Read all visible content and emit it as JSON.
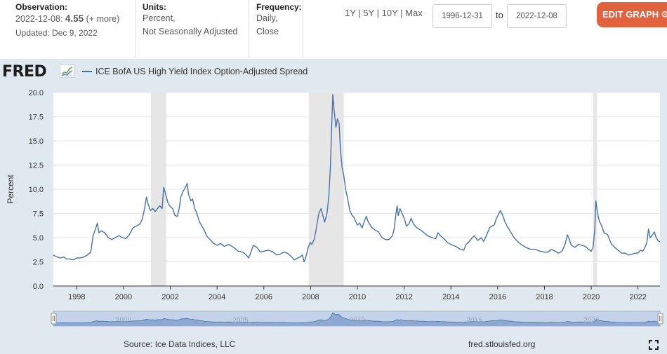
{
  "header": {
    "observation_label": "Observation:",
    "observation_date": "2022-12-08:",
    "observation_value": "4.55",
    "observation_more": "(+ more)",
    "updated": "Updated: Dec 9, 2022",
    "units_label": "Units:",
    "units_line1": "Percent,",
    "units_line2": "Not Seasonally Adjusted",
    "frequency_label": "Frequency:",
    "frequency_line1": "Daily,",
    "frequency_line2": "Close"
  },
  "ranges": [
    "1Y",
    "5Y",
    "10Y",
    "Max"
  ],
  "range_separator": "|",
  "dates": {
    "from": "1996-12-31",
    "to_label": "to",
    "to": "2022-12-08"
  },
  "edit_button": {
    "label": "EDIT GRAPH",
    "icon": "gear-icon"
  },
  "logo": {
    "text": "FRED",
    "icon": "chart-line-icon"
  },
  "footer": {
    "source": "Source: Ice Data Indices, LLC",
    "site": "fred.stlouisfed.org",
    "fullscreen_icon": "fullscreen-icon"
  },
  "colors": {
    "accent": "#e1623c",
    "line": "#4572a7",
    "recession": "#e6e6e6",
    "panel": "#e1e9f0"
  },
  "navigator_labels": [
    "2000",
    "2005",
    "2010",
    "2015",
    "2020"
  ],
  "chart_data": {
    "type": "line",
    "title": "",
    "series": [
      {
        "name": "ICE BofA US High Yield Index Option-Adjusted Spread"
      }
    ],
    "ylabel": "Percent",
    "xlabel": "",
    "ylim": [
      0,
      20
    ],
    "xlim": [
      1997.0,
      2022.94
    ],
    "y_ticks": [
      "0.0",
      "2.5",
      "5.0",
      "7.5",
      "10.0",
      "12.5",
      "15.0",
      "17.5",
      "20.0"
    ],
    "x_ticks": [
      "1998",
      "2000",
      "2002",
      "2004",
      "2006",
      "2008",
      "2010",
      "2012",
      "2014",
      "2016",
      "2018",
      "2020",
      "2022"
    ],
    "recessions": [
      [
        2001.17,
        2001.83
      ],
      [
        2007.92,
        2009.42
      ],
      [
        2020.08,
        2020.25
      ]
    ],
    "points": [
      [
        1997.0,
        3.2
      ],
      [
        1997.15,
        3.0
      ],
      [
        1997.3,
        2.9
      ],
      [
        1997.45,
        3.0
      ],
      [
        1997.55,
        2.8
      ],
      [
        1997.7,
        2.8
      ],
      [
        1997.85,
        2.7
      ],
      [
        1998.0,
        2.9
      ],
      [
        1998.15,
        2.9
      ],
      [
        1998.3,
        3.0
      ],
      [
        1998.45,
        3.2
      ],
      [
        1998.6,
        3.5
      ],
      [
        1998.7,
        5.2
      ],
      [
        1998.8,
        5.9
      ],
      [
        1998.88,
        6.5
      ],
      [
        1998.95,
        5.5
      ],
      [
        1999.05,
        5.7
      ],
      [
        1999.2,
        5.5
      ],
      [
        1999.35,
        5.0
      ],
      [
        1999.5,
        4.8
      ],
      [
        1999.65,
        5.0
      ],
      [
        1999.8,
        5.2
      ],
      [
        1999.95,
        5.0
      ],
      [
        2000.1,
        4.9
      ],
      [
        2000.25,
        5.3
      ],
      [
        2000.4,
        6.0
      ],
      [
        2000.55,
        6.2
      ],
      [
        2000.7,
        6.4
      ],
      [
        2000.8,
        6.9
      ],
      [
        2000.9,
        8.0
      ],
      [
        2000.98,
        9.2
      ],
      [
        2001.05,
        8.5
      ],
      [
        2001.15,
        7.8
      ],
      [
        2001.25,
        8.0
      ],
      [
        2001.35,
        7.7
      ],
      [
        2001.45,
        8.0
      ],
      [
        2001.55,
        8.3
      ],
      [
        2001.65,
        8.0
      ],
      [
        2001.72,
        10.2
      ],
      [
        2001.8,
        9.5
      ],
      [
        2001.9,
        8.6
      ],
      [
        2002.0,
        8.2
      ],
      [
        2002.1,
        8.0
      ],
      [
        2002.2,
        7.3
      ],
      [
        2002.3,
        7.2
      ],
      [
        2002.38,
        8.0
      ],
      [
        2002.45,
        9.2
      ],
      [
        2002.55,
        9.8
      ],
      [
        2002.65,
        10.2
      ],
      [
        2002.72,
        10.6
      ],
      [
        2002.78,
        9.5
      ],
      [
        2002.88,
        8.8
      ],
      [
        2002.95,
        9.0
      ],
      [
        2003.05,
        8.0
      ],
      [
        2003.15,
        7.4
      ],
      [
        2003.25,
        6.6
      ],
      [
        2003.35,
        6.2
      ],
      [
        2003.45,
        5.8
      ],
      [
        2003.55,
        5.2
      ],
      [
        2003.7,
        4.8
      ],
      [
        2003.85,
        4.4
      ],
      [
        2004.0,
        4.2
      ],
      [
        2004.15,
        4.4
      ],
      [
        2004.3,
        4.1
      ],
      [
        2004.5,
        4.3
      ],
      [
        2004.7,
        4.0
      ],
      [
        2004.9,
        3.6
      ],
      [
        2005.1,
        3.5
      ],
      [
        2005.25,
        3.2
      ],
      [
        2005.35,
        2.9
      ],
      [
        2005.45,
        3.5
      ],
      [
        2005.55,
        4.2
      ],
      [
        2005.7,
        4.0
      ],
      [
        2005.85,
        3.5
      ],
      [
        2006.0,
        3.6
      ],
      [
        2006.2,
        3.7
      ],
      [
        2006.4,
        3.5
      ],
      [
        2006.55,
        3.2
      ],
      [
        2006.7,
        3.3
      ],
      [
        2006.85,
        3.5
      ],
      [
        2007.0,
        3.4
      ],
      [
        2007.15,
        3.1
      ],
      [
        2007.3,
        2.7
      ],
      [
        2007.45,
        2.9
      ],
      [
        2007.55,
        3.0
      ],
      [
        2007.65,
        3.2
      ],
      [
        2007.72,
        2.5
      ],
      [
        2007.8,
        3.0
      ],
      [
        2007.9,
        4.0
      ],
      [
        2007.98,
        4.5
      ],
      [
        2008.05,
        4.3
      ],
      [
        2008.15,
        4.8
      ],
      [
        2008.25,
        6.0
      ],
      [
        2008.35,
        7.5
      ],
      [
        2008.45,
        8.0
      ],
      [
        2008.5,
        7.5
      ],
      [
        2008.6,
        6.6
      ],
      [
        2008.7,
        7.5
      ],
      [
        2008.78,
        9.3
      ],
      [
        2008.85,
        12.5
      ],
      [
        2008.9,
        16.5
      ],
      [
        2008.95,
        19.8
      ],
      [
        2009.0,
        18.3
      ],
      [
        2009.08,
        16.4
      ],
      [
        2009.15,
        17.3
      ],
      [
        2009.22,
        16.8
      ],
      [
        2009.28,
        14.0
      ],
      [
        2009.35,
        12.2
      ],
      [
        2009.42,
        11.4
      ],
      [
        2009.5,
        10.0
      ],
      [
        2009.6,
        8.8
      ],
      [
        2009.68,
        7.8
      ],
      [
        2009.75,
        7.4
      ],
      [
        2009.85,
        7.1
      ],
      [
        2010.0,
        6.3
      ],
      [
        2010.1,
        6.5
      ],
      [
        2010.2,
        6.0
      ],
      [
        2010.3,
        6.7
      ],
      [
        2010.38,
        7.2
      ],
      [
        2010.45,
        6.7
      ],
      [
        2010.6,
        6.1
      ],
      [
        2010.75,
        5.8
      ],
      [
        2010.9,
        5.6
      ],
      [
        2011.05,
        5.0
      ],
      [
        2011.2,
        4.8
      ],
      [
        2011.35,
        4.8
      ],
      [
        2011.5,
        5.2
      ],
      [
        2011.58,
        6.0
      ],
      [
        2011.65,
        7.5
      ],
      [
        2011.7,
        8.3
      ],
      [
        2011.75,
        7.3
      ],
      [
        2011.82,
        8.0
      ],
      [
        2011.9,
        7.6
      ],
      [
        2012.0,
        7.0
      ],
      [
        2012.1,
        6.2
      ],
      [
        2012.2,
        6.4
      ],
      [
        2012.3,
        7.0
      ],
      [
        2012.4,
        6.4
      ],
      [
        2012.55,
        6.0
      ],
      [
        2012.7,
        5.8
      ],
      [
        2012.85,
        5.5
      ],
      [
        2013.0,
        5.2
      ],
      [
        2013.2,
        5.0
      ],
      [
        2013.35,
        4.9
      ],
      [
        2013.45,
        5.5
      ],
      [
        2013.55,
        5.2
      ],
      [
        2013.7,
        4.9
      ],
      [
        2013.85,
        4.5
      ],
      [
        2014.0,
        4.3
      ],
      [
        2014.2,
        4.1
      ],
      [
        2014.4,
        3.8
      ],
      [
        2014.55,
        3.7
      ],
      [
        2014.65,
        4.3
      ],
      [
        2014.75,
        4.5
      ],
      [
        2014.88,
        4.9
      ],
      [
        2015.0,
        5.2
      ],
      [
        2015.15,
        4.7
      ],
      [
        2015.3,
        5.0
      ],
      [
        2015.4,
        4.6
      ],
      [
        2015.55,
        5.4
      ],
      [
        2015.65,
        6.0
      ],
      [
        2015.75,
        6.2
      ],
      [
        2015.85,
        6.3
      ],
      [
        2015.95,
        7.0
      ],
      [
        2016.05,
        7.5
      ],
      [
        2016.12,
        7.8
      ],
      [
        2016.2,
        7.4
      ],
      [
        2016.3,
        6.7
      ],
      [
        2016.4,
        6.2
      ],
      [
        2016.55,
        5.6
      ],
      [
        2016.7,
        5.0
      ],
      [
        2016.85,
        4.6
      ],
      [
        2017.0,
        4.3
      ],
      [
        2017.2,
        4.0
      ],
      [
        2017.4,
        3.8
      ],
      [
        2017.6,
        3.8
      ],
      [
        2017.8,
        3.6
      ],
      [
        2018.0,
        3.5
      ],
      [
        2018.15,
        3.5
      ],
      [
        2018.3,
        3.8
      ],
      [
        2018.45,
        3.6
      ],
      [
        2018.6,
        3.4
      ],
      [
        2018.75,
        3.6
      ],
      [
        2018.88,
        4.3
      ],
      [
        2018.98,
        5.3
      ],
      [
        2019.05,
        4.9
      ],
      [
        2019.15,
        4.2
      ],
      [
        2019.3,
        4.0
      ],
      [
        2019.45,
        4.3
      ],
      [
        2019.6,
        4.2
      ],
      [
        2019.75,
        4.1
      ],
      [
        2019.88,
        3.8
      ],
      [
        2020.0,
        3.6
      ],
      [
        2020.08,
        4.0
      ],
      [
        2020.15,
        5.8
      ],
      [
        2020.2,
        8.8
      ],
      [
        2020.27,
        7.5
      ],
      [
        2020.35,
        6.7
      ],
      [
        2020.45,
        6.2
      ],
      [
        2020.55,
        5.5
      ],
      [
        2020.7,
        5.3
      ],
      [
        2020.85,
        4.4
      ],
      [
        2021.0,
        4.0
      ],
      [
        2021.15,
        3.7
      ],
      [
        2021.3,
        3.4
      ],
      [
        2021.45,
        3.4
      ],
      [
        2021.6,
        3.2
      ],
      [
        2021.75,
        3.3
      ],
      [
        2021.88,
        3.4
      ],
      [
        2022.0,
        3.4
      ],
      [
        2022.1,
        3.7
      ],
      [
        2022.2,
        3.6
      ],
      [
        2022.3,
        4.0
      ],
      [
        2022.38,
        4.5
      ],
      [
        2022.45,
        5.9
      ],
      [
        2022.52,
        5.0
      ],
      [
        2022.6,
        5.2
      ],
      [
        2022.7,
        5.6
      ],
      [
        2022.78,
        5.0
      ],
      [
        2022.85,
        4.7
      ],
      [
        2022.94,
        4.55
      ]
    ]
  }
}
